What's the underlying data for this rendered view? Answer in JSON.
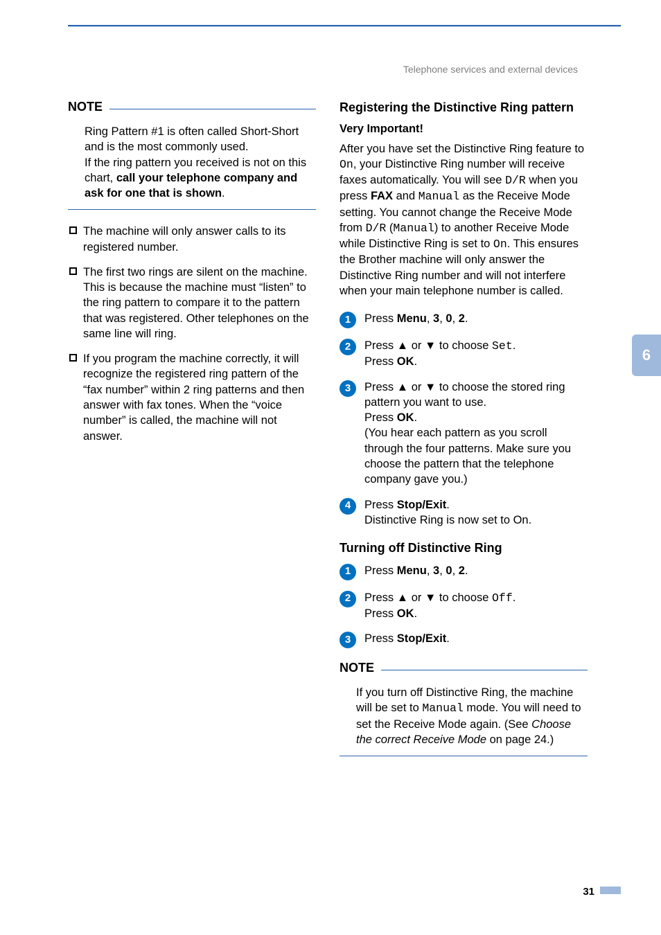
{
  "colors": {
    "accent_blue": "#2a62b0",
    "step_circle": "#0070c0",
    "tab_bg": "#9fb9dc",
    "header_gray": "#808080",
    "rule_light": "#c2d6ee",
    "text": "#000000",
    "page_bg": "#ffffff"
  },
  "typography": {
    "body_font": "Arial",
    "body_size_pt": 12,
    "heading_size_pt": 13.5,
    "mono_font": "Courier New"
  },
  "header": {
    "breadcrumb": "Telephone services and external devices"
  },
  "side_tab": {
    "label": "6"
  },
  "page_number": "31",
  "left": {
    "note": {
      "label": "NOTE",
      "line1": "Ring Pattern #1 is often called Short-Short and is the most commonly used.",
      "line2_prefix": "If the ring pattern you received is not on this chart, ",
      "line2_bold": "call your telephone company and ask for one that is shown",
      "line2_suffix": "."
    },
    "bullets": [
      "The machine will only answer calls to its registered number.",
      "The first two rings are silent on the machine. This is because the machine must “listen” to the ring pattern to compare it to the pattern that was registered. Other telephones on the same line will ring.",
      "If you program the machine correctly, it will recognize the registered ring pattern of the “fax number” within 2 ring patterns and then answer with fax tones. When the “voice number” is called, the machine will not answer."
    ]
  },
  "right": {
    "section1": {
      "title": "Registering the Distinctive Ring pattern",
      "subtitle": "Very Important!",
      "intro": {
        "t1": "After you have set the Distinctive Ring feature to ",
        "m1": "On",
        "t2": ", your Distinctive Ring number will receive faxes automatically. You will see ",
        "m2": "D/R",
        "t3": " when you press ",
        "b1": "FAX",
        "t4": " and ",
        "m3": "Manual",
        "t5": " as the Receive Mode setting. You cannot change the Receive Mode from ",
        "m4": "D/R",
        "t6": " (",
        "m5": "Manual",
        "t7": ") to another Receive Mode while Distinctive Ring is set to ",
        "m6": "On",
        "t8": ". This ensures the Brother machine will only answer the Distinctive Ring number and will not interfere when your main telephone number is called."
      },
      "steps": {
        "s1": {
          "t1": "Press ",
          "b1": "Menu",
          "t2": ", ",
          "b2": "3",
          "t3": ", ",
          "b3": "0",
          "t4": ", ",
          "b4": "2",
          "t5": "."
        },
        "s2": {
          "t1": "Press ",
          "a1": "▲",
          "t2": " or ",
          "a2": "▼",
          "t3": " to choose ",
          "m1": "Set",
          "t4": ".",
          "br": "Press ",
          "b1": "OK",
          "t5": "."
        },
        "s3": {
          "t1": "Press ",
          "a1": "▲",
          "t2": " or ",
          "a2": "▼",
          "t3": " to choose the stored ring pattern you want to use.",
          "br1": "Press ",
          "b1": "OK",
          "t4": ".",
          "t5": "(You hear each pattern as you scroll through the four patterns. Make sure you choose the pattern that the telephone company gave you.)"
        },
        "s4": {
          "t1": "Press ",
          "b1": "Stop/Exit",
          "t2": ".",
          "br": "Distinctive Ring is now set to On."
        }
      }
    },
    "section2": {
      "title": "Turning off Distinctive Ring",
      "steps": {
        "s1": {
          "t1": "Press ",
          "b1": "Menu",
          "t2": ", ",
          "b2": "3",
          "t3": ", ",
          "b3": "0",
          "t4": ", ",
          "b4": "2",
          "t5": "."
        },
        "s2": {
          "t1": "Press ",
          "a1": "▲",
          "t2": " or ",
          "a2": "▼",
          "t3": " to choose ",
          "m1": "Off",
          "t4": ".",
          "br": "Press ",
          "b1": "OK",
          "t5": "."
        },
        "s3": {
          "t1": "Press ",
          "b1": "Stop/Exit",
          "t2": "."
        }
      }
    },
    "note2": {
      "label": "NOTE",
      "t1": "If you turn off Distinctive Ring, the machine will be set to ",
      "m1": "Manual",
      "t2": " mode. You will need to set the Receive Mode again. (See ",
      "i1": "Choose the correct Receive Mode",
      "t3": " on page 24.)"
    }
  }
}
